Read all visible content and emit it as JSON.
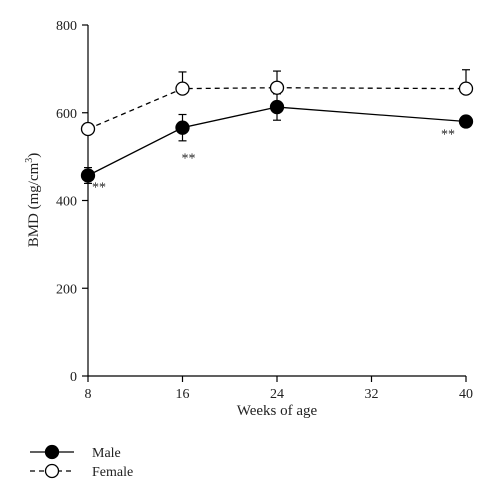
{
  "chart_data": {
    "type": "line",
    "xlabel": "Weeks of age",
    "ylabel": "BMD (mg/cm",
    "ylabel_superscript": "3",
    "ylabel_suffix": ")",
    "xlim": [
      8,
      40
    ],
    "ylim": [
      0,
      800
    ],
    "xticks": [
      8,
      16,
      24,
      32,
      40
    ],
    "yticks": [
      0,
      200,
      400,
      600,
      800
    ],
    "grid": false,
    "legend_position": "bottom-left",
    "series": [
      {
        "name": "Male",
        "marker": "filled-circle",
        "line_style": "solid",
        "color": "#000000",
        "x": [
          8,
          16,
          24,
          40
        ],
        "values": [
          457,
          566,
          613,
          580
        ],
        "error": [
          18,
          30,
          30,
          8
        ]
      },
      {
        "name": "Female",
        "marker": "open-circle",
        "line_style": "dashed",
        "color": "#000000",
        "x": [
          8,
          16,
          24,
          40
        ],
        "values": [
          563,
          655,
          657,
          655
        ],
        "error": [
          10,
          38,
          38,
          43
        ]
      }
    ],
    "annotations": [
      {
        "text": "**",
        "x": 8,
        "series": "Male",
        "side": "right"
      },
      {
        "text": "**",
        "x": 16,
        "series": "Male",
        "side": "below"
      },
      {
        "text": "**",
        "x": 40,
        "series": "Male",
        "side": "left"
      }
    ]
  }
}
